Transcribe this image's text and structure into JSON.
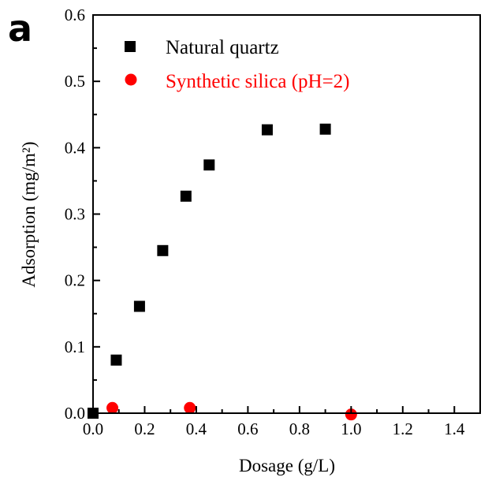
{
  "panel_label": "a",
  "chart_data": {
    "type": "scatter",
    "title": "",
    "xlabel": "Dosage (g/L)",
    "ylabel": "Adsorption (mg/m²)",
    "xlim": [
      0.0,
      1.5
    ],
    "ylim": [
      0.0,
      0.6
    ],
    "xticks": [
      "0.0",
      "0.2",
      "0.4",
      "0.6",
      "0.8",
      "1.0",
      "1.2",
      "1.4"
    ],
    "yticks": [
      "0.0",
      "0.1",
      "0.2",
      "0.3",
      "0.4",
      "0.5",
      "0.6"
    ],
    "grid": false,
    "legend_position": "top-left",
    "series": [
      {
        "name": "Natural quartz",
        "marker": "square",
        "color": "#000000",
        "points": [
          {
            "x": 0.0,
            "y": 0.0
          },
          {
            "x": 0.09,
            "y": 0.08
          },
          {
            "x": 0.18,
            "y": 0.161
          },
          {
            "x": 0.27,
            "y": 0.245
          },
          {
            "x": 0.36,
            "y": 0.327
          },
          {
            "x": 0.45,
            "y": 0.374
          },
          {
            "x": 0.675,
            "y": 0.427
          },
          {
            "x": 0.9,
            "y": 0.428
          }
        ]
      },
      {
        "name": "Synthetic silica (pH=2)",
        "marker": "circle",
        "color": "#ff0000",
        "points": [
          {
            "x": 0.075,
            "y": 0.008
          },
          {
            "x": 0.375,
            "y": 0.008
          },
          {
            "x": 1.0,
            "y": -0.002
          }
        ]
      }
    ]
  }
}
